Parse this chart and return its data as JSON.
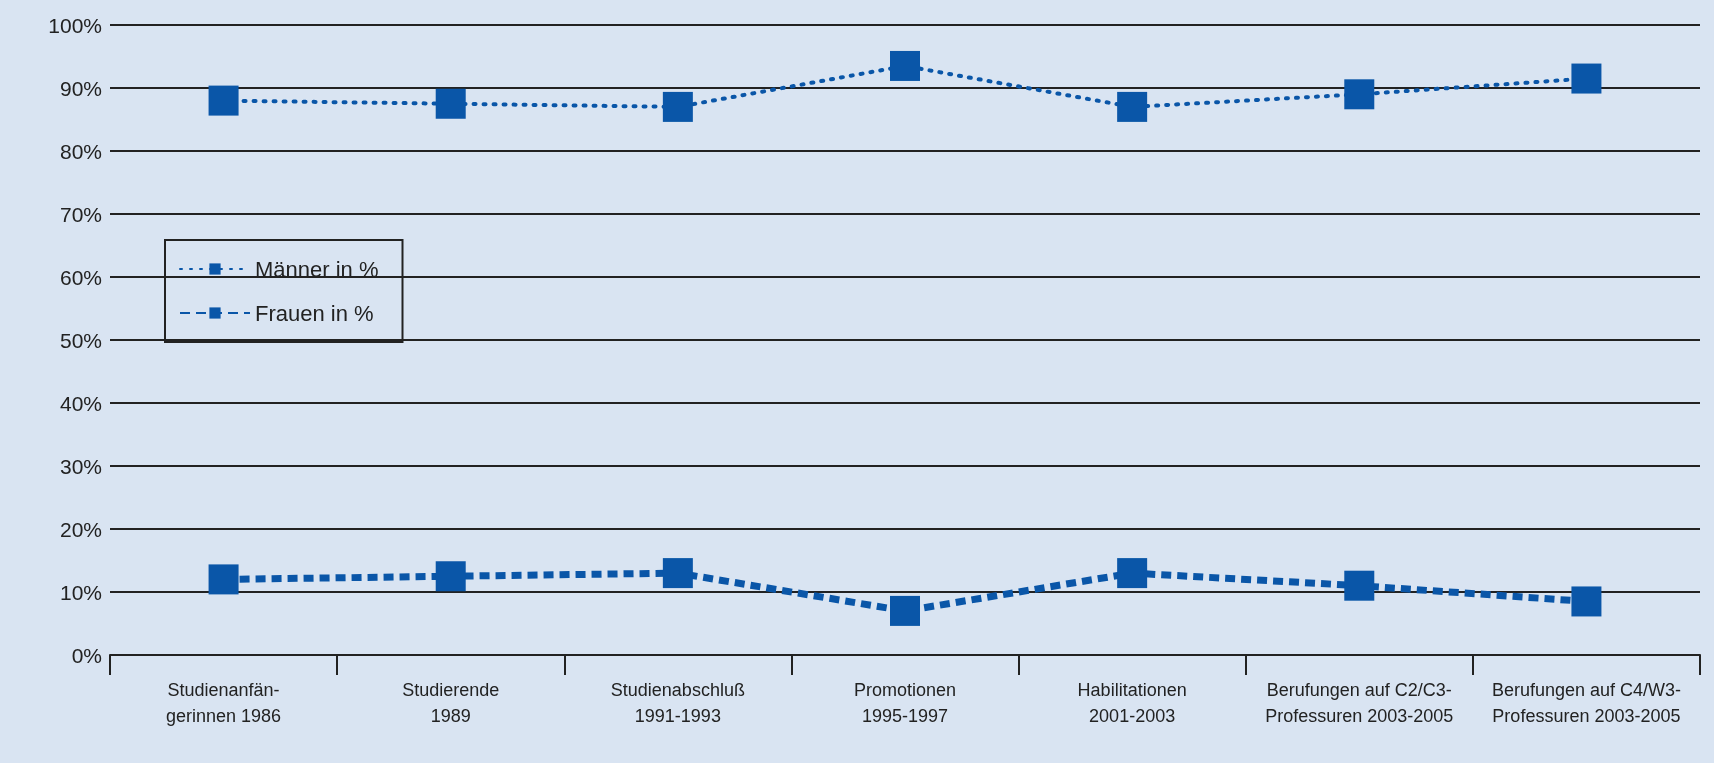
{
  "chart_data": {
    "type": "line",
    "categories": [
      "Studienanfän-\ngerinnen 1986",
      "Studierende\n1989",
      "Studienabschluß\n1991-1993",
      "Promotionen\n1995-1997",
      "Habilitationen\n2001-2003",
      "Berufungen auf C2/C3-\nProfessuren 2003-2005",
      "Berufungen auf C4/W3-\nProfessuren 2003-2005"
    ],
    "series": [
      {
        "name": "Männer in %",
        "color": "#0a56a8",
        "line_style": "dotted",
        "values": [
          88,
          87.5,
          87,
          93.5,
          87,
          89,
          91.5
        ]
      },
      {
        "name": "Frauen in %",
        "color": "#0a56a8",
        "line_style": "dashed",
        "values": [
          12,
          12.5,
          13,
          7,
          13,
          11,
          8.5
        ]
      }
    ],
    "ylim": [
      0,
      100
    ],
    "yticks": [
      {
        "value": 0,
        "label": "0%"
      },
      {
        "value": 10,
        "label": "10%"
      },
      {
        "value": 20,
        "label": "20%"
      },
      {
        "value": 30,
        "label": "30%"
      },
      {
        "value": 40,
        "label": "40%"
      },
      {
        "value": 50,
        "label": "50%"
      },
      {
        "value": 60,
        "label": "60%"
      },
      {
        "value": 70,
        "label": "70%"
      },
      {
        "value": 80,
        "label": "80%"
      },
      {
        "value": 90,
        "label": "90%"
      },
      {
        "value": 100,
        "label": "100%"
      }
    ],
    "grid": "y",
    "legend": "top left",
    "marker": "square"
  }
}
